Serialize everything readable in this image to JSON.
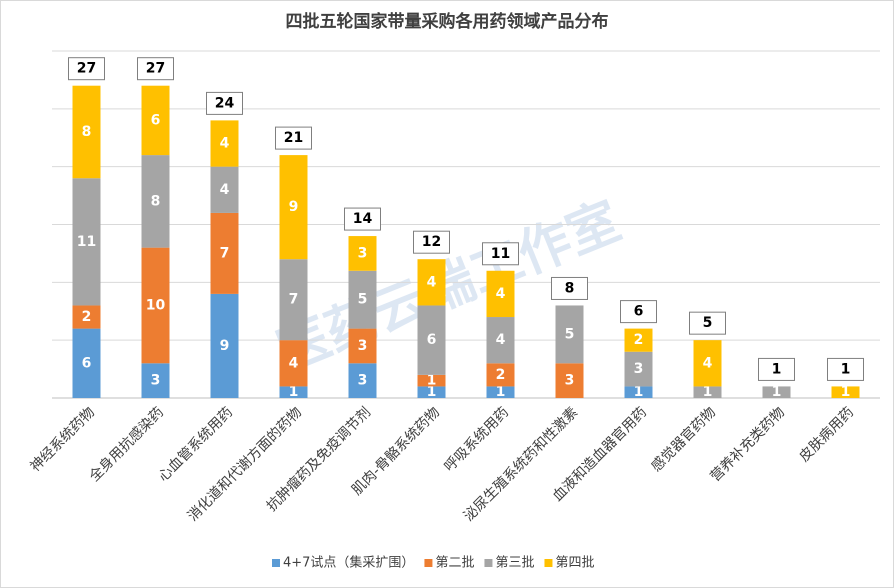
{
  "chart_data": {
    "type": "stacked-bar",
    "title": "四批五轮国家带量采购各用药领域产品分布",
    "watermark": "医药云端工作室",
    "categories": [
      "神经系统药物",
      "全身用抗感染药",
      "心血管系统用药",
      "消化道和代谢方面的药物",
      "抗肿瘤药及免疫调节剂",
      "肌肉-骨骼系统药物",
      "呼吸系统用药",
      "泌尿生殖系统药和性激素",
      "血液和造血器官用药",
      "感觉器官药物",
      "营养补充类药物",
      "皮肤病用药"
    ],
    "series": [
      {
        "name": "4+7试点（集采扩围）",
        "color": "#5b9bd5",
        "values": [
          6,
          3,
          9,
          1,
          3,
          1,
          1,
          null,
          1,
          null,
          null,
          null
        ]
      },
      {
        "name": "第二批",
        "color": "#ed7d31",
        "values": [
          2,
          10,
          7,
          4,
          3,
          1,
          2,
          3,
          null,
          null,
          null,
          null
        ]
      },
      {
        "name": "第三批",
        "color": "#a5a5a5",
        "values": [
          11,
          8,
          4,
          7,
          5,
          6,
          4,
          5,
          3,
          1,
          1,
          null
        ]
      },
      {
        "name": "第四批",
        "color": "#ffc000",
        "values": [
          8,
          6,
          4,
          9,
          3,
          4,
          4,
          null,
          2,
          4,
          null,
          1
        ]
      }
    ],
    "totals": [
      27,
      27,
      24,
      21,
      14,
      12,
      11,
      8,
      6,
      5,
      1,
      1
    ],
    "ylim": [
      0,
      30
    ],
    "yticks": [
      0,
      5,
      10,
      15,
      20,
      25,
      30
    ],
    "grid": true,
    "legend": "bottom"
  }
}
